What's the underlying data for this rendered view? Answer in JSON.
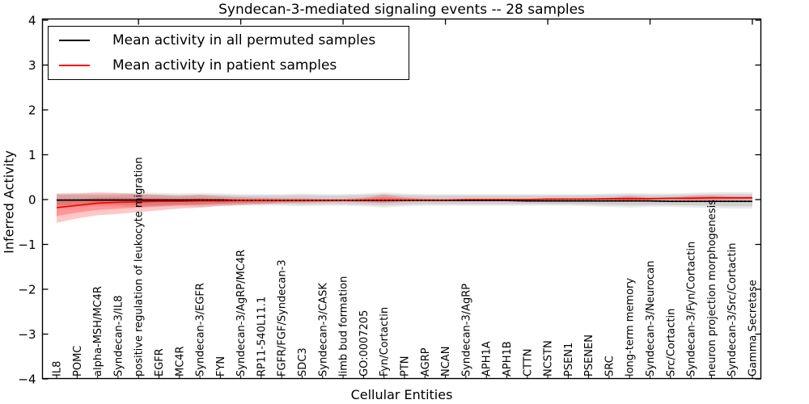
{
  "chart_data": {
    "type": "line",
    "title": "Syndecan-3-mediated signaling events -- 28 samples",
    "xlabel": "Cellular Entities",
    "ylabel": "Inferred Activity",
    "ylim": [
      -4,
      4
    ],
    "ytick_labels": [
      "4",
      "3",
      "2",
      "1",
      "0",
      "−1",
      "−2",
      "−3",
      "−4"
    ],
    "ytick_values": [
      4,
      3,
      2,
      1,
      0,
      -1,
      -2,
      -3,
      -4
    ],
    "xtick_major_indices": [
      4,
      9,
      14,
      19,
      24,
      29,
      34
    ],
    "grid": false,
    "legend_position": "upper-left-inside",
    "legend": [
      {
        "label": "Mean activity in all permuted samples",
        "color": "#000000"
      },
      {
        "label": "Mean activity in patient samples",
        "color": "#ff0000"
      }
    ],
    "categories": [
      "IL8",
      "POMC",
      "alpha-MSH/MC4R",
      "Syndecan-3/IL8",
      "positive regulation of leukocyte migration",
      "EGFR",
      "MC4R",
      "Syndecan-3/EGFR",
      "FYN",
      "Syndecan-3/AgRP/MC4R",
      "RP11-540L11.1",
      "FGFR/FGF/Syndecan-3",
      "SDC3",
      "Syndecan-3/CASK",
      "limb bud formation",
      "GO:0007205",
      "Fyn/Cortactin",
      "PTN",
      "AGRP",
      "NCAN",
      "Syndecan-3/AgRP",
      "APH1A",
      "APH1B",
      "CTTN",
      "NCSTN",
      "PSEN1",
      "PSENEN",
      "SRC",
      "long-term memory",
      "Syndecan-3/Neurocan",
      "Src/Cortactin",
      "Syndecan-3/Fyn/Cortactin",
      "neuron projection morphogenesis",
      "Syndecan-3/Src/Cortactin",
      "Gamma Secretase"
    ],
    "series": [
      {
        "name": "Mean activity in all permuted samples",
        "color": "#000000",
        "style": "solid-with-dotted-overlay",
        "values": [
          -0.01,
          -0.01,
          -0.01,
          -0.01,
          -0.01,
          -0.01,
          -0.01,
          -0.01,
          -0.01,
          -0.02,
          -0.02,
          -0.02,
          -0.02,
          -0.02,
          -0.02,
          -0.02,
          -0.02,
          -0.02,
          -0.02,
          -0.02,
          -0.02,
          -0.02,
          -0.02,
          -0.03,
          -0.03,
          -0.03,
          -0.03,
          -0.03,
          -0.03,
          -0.03,
          -0.04,
          -0.04,
          -0.04,
          -0.04,
          -0.04
        ]
      },
      {
        "name": "Mean activity in patient samples",
        "color": "#ff0000",
        "style": "solid",
        "values": [
          -0.18,
          -0.13,
          -0.08,
          -0.06,
          -0.05,
          -0.04,
          -0.04,
          -0.03,
          -0.03,
          -0.02,
          -0.02,
          -0.02,
          -0.02,
          -0.02,
          -0.02,
          -0.01,
          -0.01,
          -0.01,
          -0.01,
          -0.01,
          0,
          0,
          0,
          0,
          0.01,
          0.01,
          0.01,
          0.02,
          0.02,
          0.02,
          0.03,
          0.03,
          0.04,
          0.04,
          0.04
        ]
      }
    ],
    "bands": [
      {
        "name": "permuted-sample-range",
        "color": "#bcbcbc",
        "upper": [
          0.1,
          0.1,
          0.1,
          0.1,
          0.12,
          0.11,
          0.1,
          0.11,
          0.1,
          0.09,
          0.09,
          0.09,
          0.1,
          0.09,
          0.09,
          0.1,
          0.12,
          0.1,
          0.09,
          0.09,
          0.09,
          0.09,
          0.09,
          0.09,
          0.09,
          0.09,
          0.09,
          0.1,
          0.11,
          0.1,
          0.1,
          0.11,
          0.12,
          0.12,
          0.12
        ],
        "lower": [
          -0.12,
          -0.12,
          -0.11,
          -0.11,
          -0.13,
          -0.12,
          -0.11,
          -0.12,
          -0.11,
          -0.1,
          -0.1,
          -0.1,
          -0.11,
          -0.1,
          -0.1,
          -0.11,
          -0.13,
          -0.11,
          -0.1,
          -0.1,
          -0.1,
          -0.1,
          -0.1,
          -0.1,
          -0.1,
          -0.1,
          -0.11,
          -0.12,
          -0.13,
          -0.12,
          -0.12,
          -0.13,
          -0.14,
          -0.15,
          -0.15
        ]
      },
      {
        "name": "patient-sample-range",
        "color": "#ff0000",
        "upper": [
          0.13,
          0.14,
          0.16,
          0.15,
          0.12,
          0.1,
          0.08,
          0.1,
          0.07,
          0.05,
          0.04,
          0.03,
          0.03,
          0.02,
          0.02,
          0.04,
          0.11,
          0.05,
          0.02,
          0.01,
          0.01,
          0.01,
          0.01,
          0.01,
          0.02,
          0.02,
          0.02,
          0.04,
          0.08,
          0.04,
          0.04,
          0.08,
          0.09,
          0.07,
          0.07
        ],
        "lower": [
          -0.52,
          -0.42,
          -0.35,
          -0.32,
          -0.28,
          -0.24,
          -0.2,
          -0.18,
          -0.14,
          -0.12,
          -0.1,
          -0.08,
          -0.07,
          -0.06,
          -0.05,
          -0.06,
          -0.08,
          -0.05,
          -0.03,
          -0.03,
          -0.02,
          -0.02,
          -0.02,
          -0.02,
          -0.02,
          -0.01,
          -0.01,
          -0.02,
          -0.04,
          -0.01,
          -0.01,
          -0.02,
          -0.02,
          -0.01,
          0
        ]
      }
    ],
    "colors": {
      "axis": "#000000",
      "background": "#ffffff",
      "permuted_line": "#000000",
      "patient_line": "#ff0000",
      "permuted_band": "#c6c6c6",
      "patient_band": "#ff0000"
    }
  }
}
